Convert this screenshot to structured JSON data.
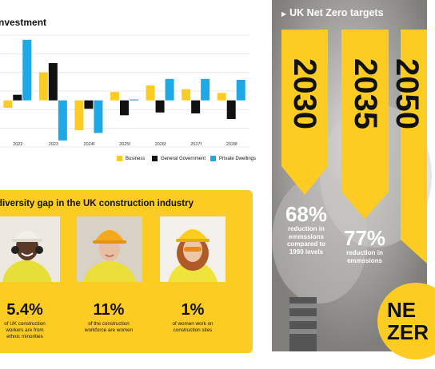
{
  "investment": {
    "title": "nvestment",
    "chart_data": {
      "type": "bar",
      "categories": [
        "2022",
        "2023",
        "2024f",
        "2025f",
        "2026f",
        "2027f",
        "2028f"
      ],
      "series": [
        {
          "name": "Business",
          "color": "#fccc22",
          "values": [
            -0.8,
            3.0,
            -3.2,
            0.9,
            1.6,
            1.2,
            0.8
          ]
        },
        {
          "name": "General Government",
          "color": "#111111",
          "values": [
            0.6,
            4.0,
            -0.9,
            -1.6,
            -1.3,
            -1.4,
            -2.0
          ]
        },
        {
          "name": "Private Dwellings",
          "color": "#1fa8e6",
          "values": [
            6.5,
            -4.3,
            -3.5,
            0.1,
            2.3,
            2.3,
            2.2
          ]
        }
      ],
      "ylim": [
        -5,
        7
      ]
    }
  },
  "diversity": {
    "title": "diversity gap in the UK construction industry",
    "stats": [
      {
        "value": "5.4%",
        "text": "of UK construction workers are from ethnic minorities"
      },
      {
        "value": "11%",
        "text": "of the construction workforce are women"
      },
      {
        "value": "1%",
        "text": "of women work on construction sites"
      }
    ]
  },
  "netzero": {
    "title": "UK Net Zero targets",
    "years": [
      "2030",
      "2035",
      "2050"
    ],
    "targets": [
      {
        "pct": "68%",
        "label": "reduction in emmssions compared to 1990 levels"
      },
      {
        "pct": "77%",
        "label": "reduction in emmssions"
      }
    ],
    "badge_line1": "NE",
    "badge_line2": "ZER"
  },
  "colors": {
    "accent": "#fccc22",
    "blue": "#1fa8e6",
    "black": "#111111"
  }
}
